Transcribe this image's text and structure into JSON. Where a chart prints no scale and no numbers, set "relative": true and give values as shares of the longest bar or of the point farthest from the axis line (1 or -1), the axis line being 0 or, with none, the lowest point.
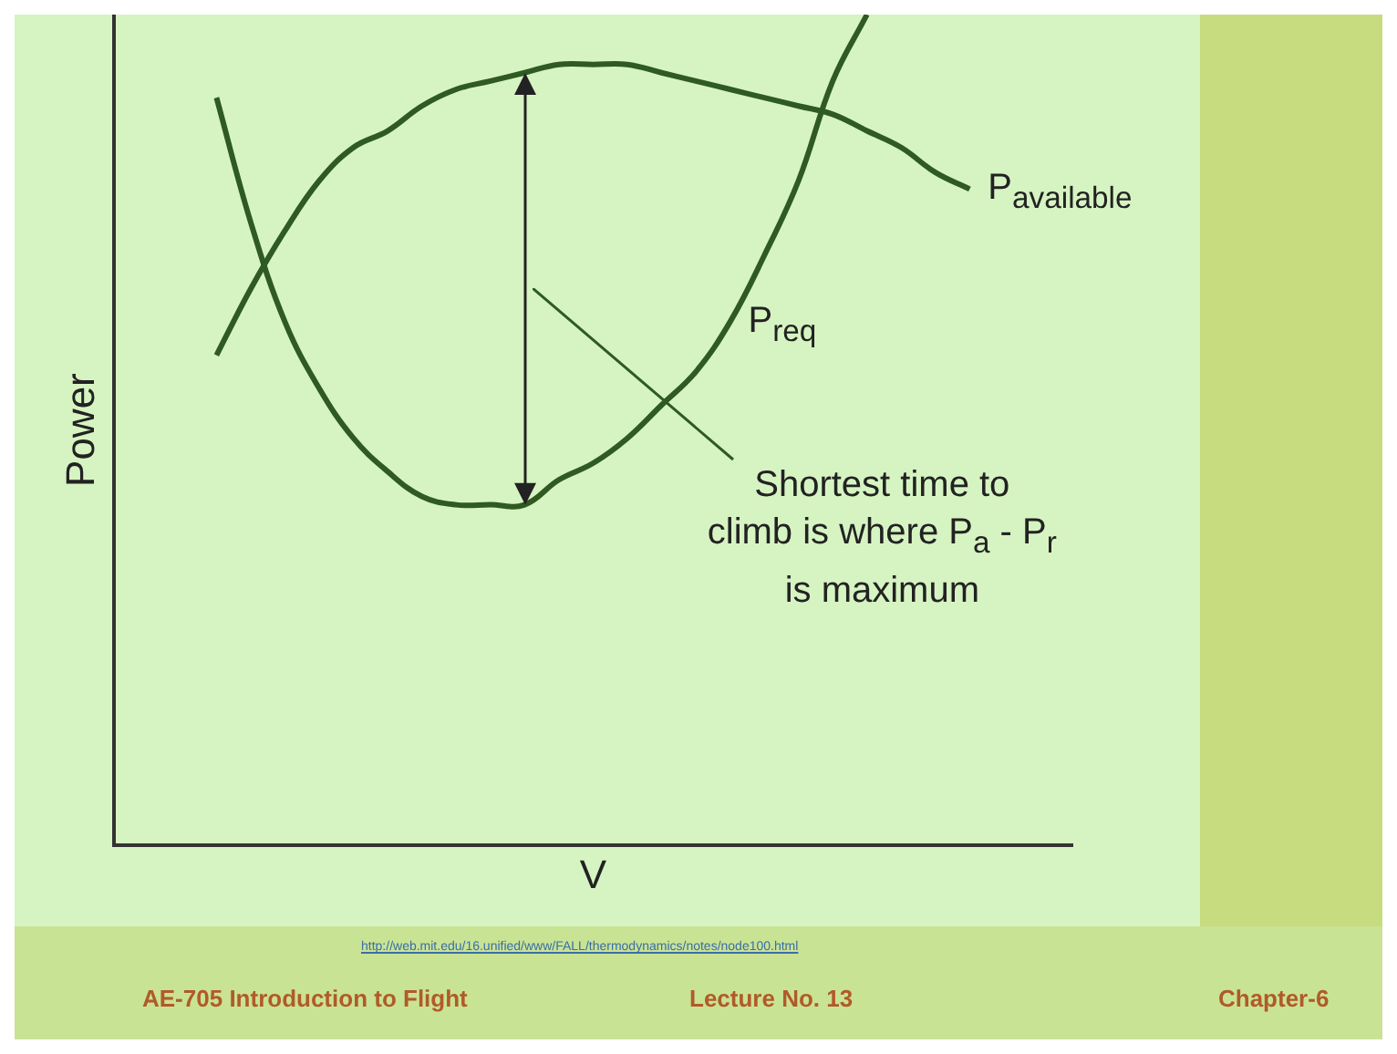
{
  "chart_data": {
    "type": "line",
    "relative": true,
    "xlabel": "V",
    "ylabel": "Power",
    "categories": [
      null,
      null,
      null,
      null,
      null,
      null,
      null,
      null,
      null,
      null,
      null,
      null,
      null,
      null,
      null,
      null,
      null,
      null,
      null,
      null,
      null,
      null,
      null,
      null,
      null,
      null,
      null,
      null,
      null
    ],
    "series": [
      {
        "name": "P$_{available}$",
        "color": "#2f5a22",
        "values": [
          null,
          null,
          null,
          0.59,
          0.67,
          0.74,
          0.8,
          0.84,
          0.86,
          0.89,
          0.91,
          0.92,
          0.93,
          0.94,
          0.94,
          0.94,
          0.93,
          0.92,
          0.91,
          0.9,
          0.89,
          0.88,
          0.86,
          0.84,
          0.81,
          0.79,
          null,
          null,
          null
        ]
      },
      {
        "name": "P$_{req}$",
        "color": "#2f5a22",
        "values": [
          null,
          null,
          null,
          0.9,
          0.75,
          0.63,
          0.55,
          0.49,
          0.45,
          0.42,
          0.41,
          0.41,
          0.41,
          0.44,
          0.46,
          0.49,
          0.53,
          0.57,
          0.63,
          0.71,
          0.8,
          0.92,
          1,
          null,
          null,
          null,
          null,
          null,
          null
        ]
      }
    ],
    "annotations": [
      "Shortest time to climb is where P$_{a}$ - P$_{r}$ is maximum",
      "http://web.mit.edu/16.unified/www/FALL/thermodynamics/notes/node100.html",
      "AE-705 Introduction to Flight",
      "Lecture No. 13",
      "Chapter-6"
    ],
    "grid": false,
    "legend": false,
    "marker": "none",
    "line_style": "solid"
  }
}
